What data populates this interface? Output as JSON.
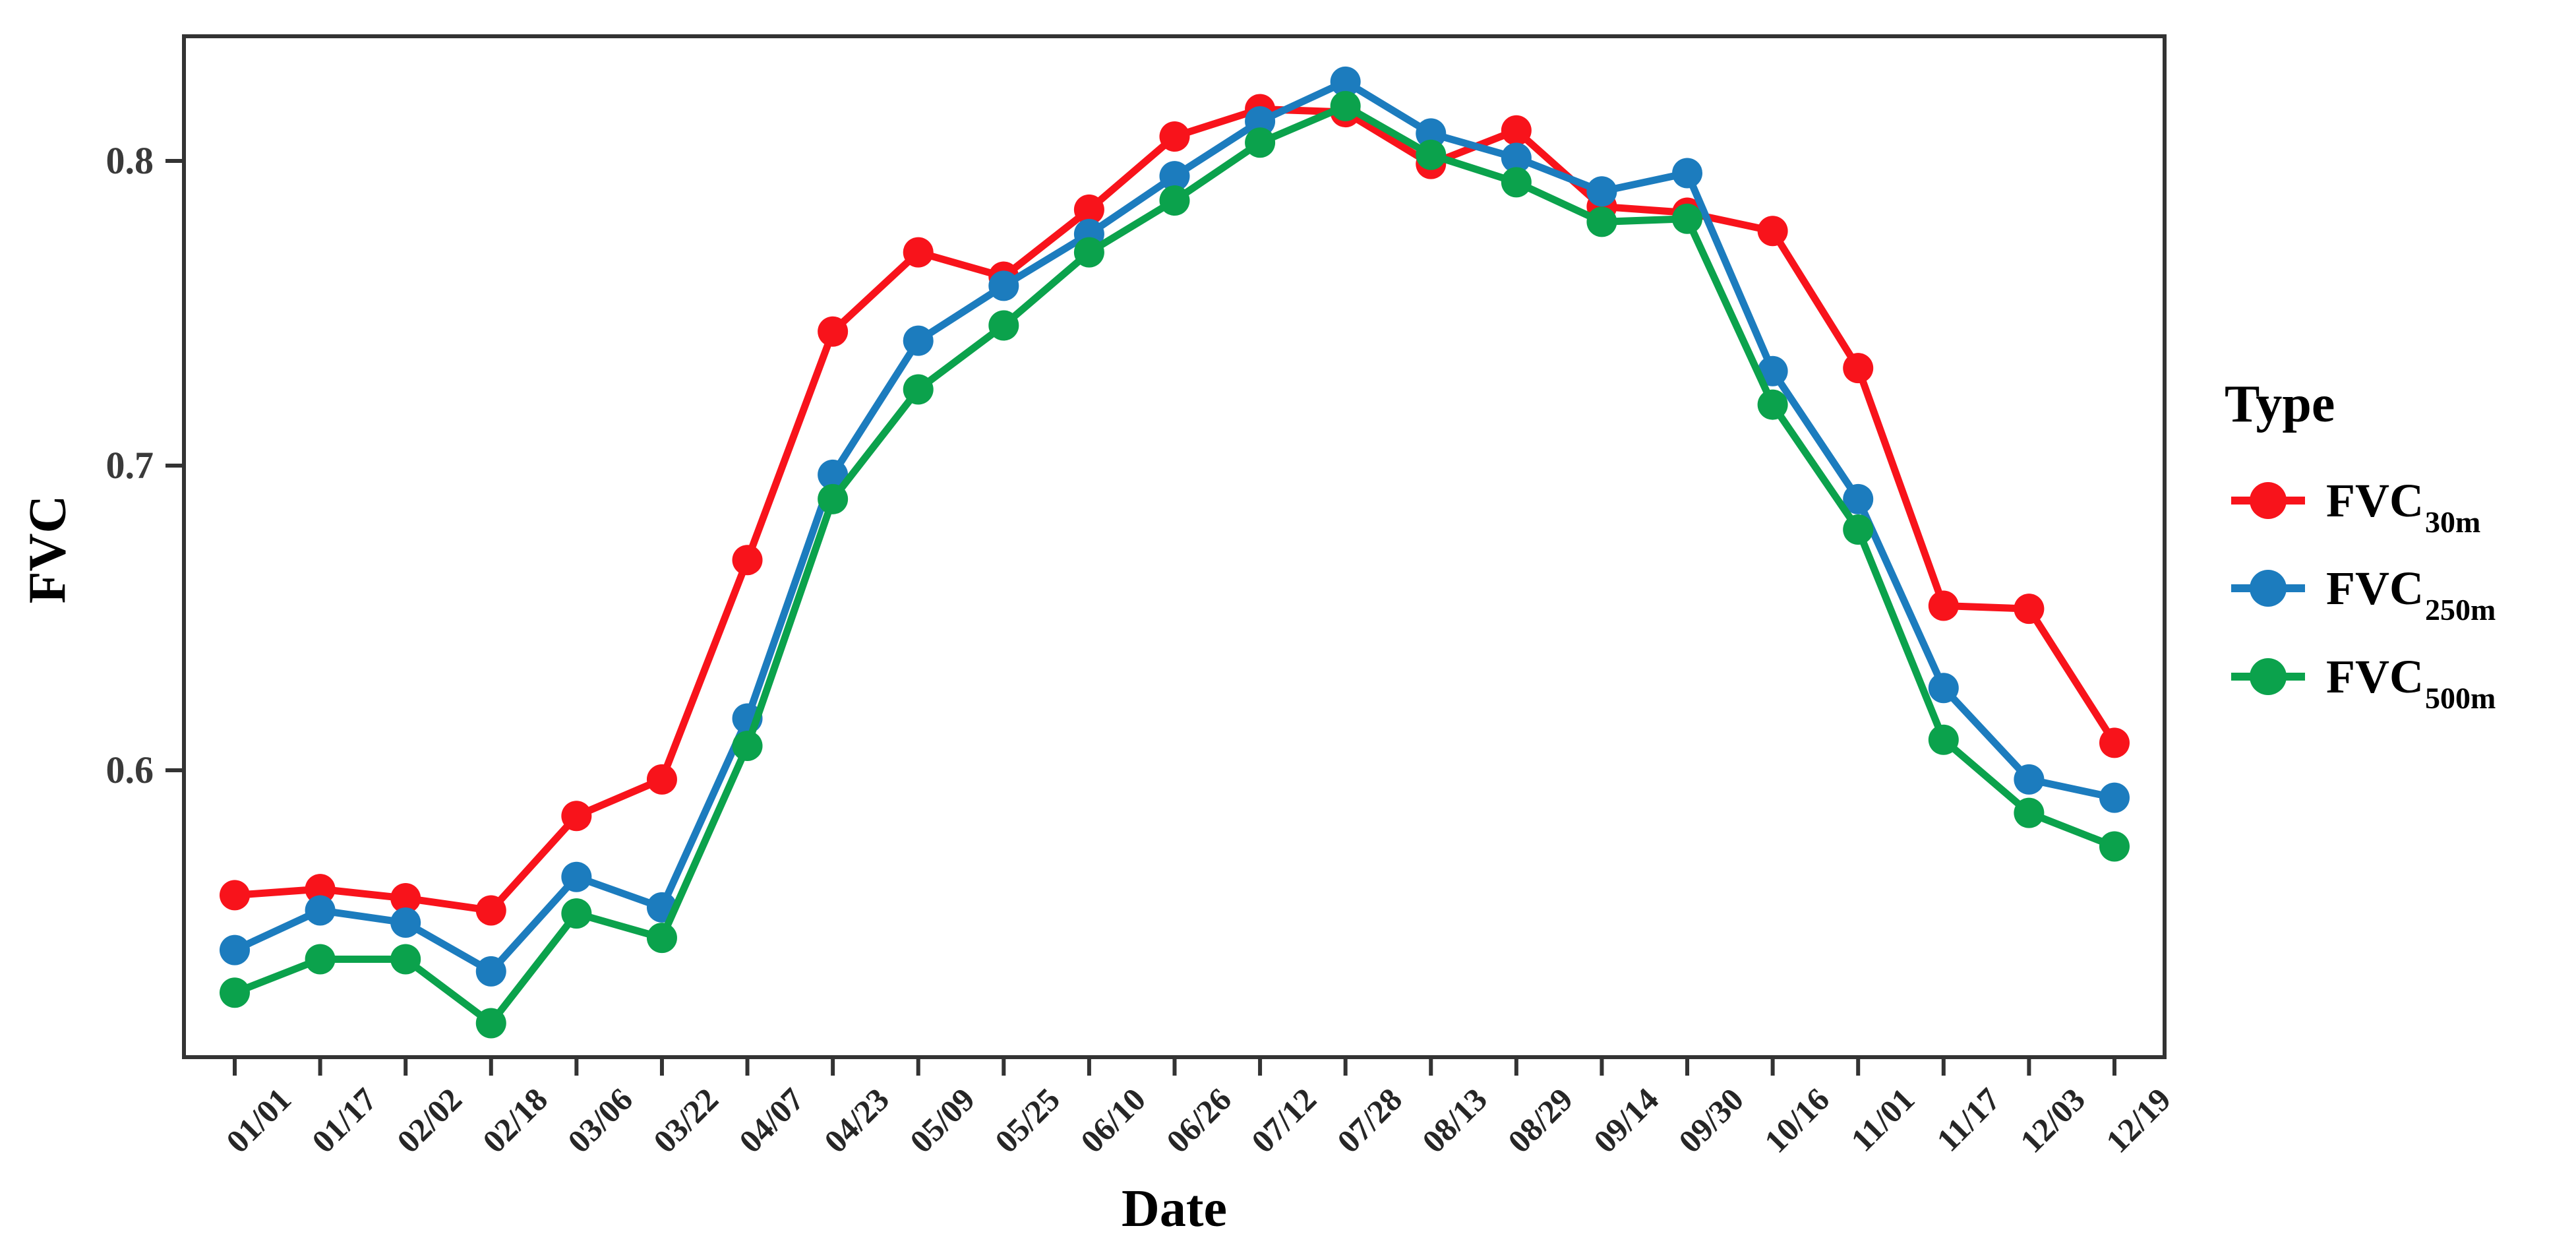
{
  "chart_data": {
    "type": "line",
    "title": "",
    "xlabel": "Date",
    "ylabel": "FVC",
    "x_categories": [
      "01/01",
      "01/17",
      "02/02",
      "02/18",
      "03/06",
      "03/22",
      "04/07",
      "04/23",
      "05/09",
      "05/25",
      "06/10",
      "06/26",
      "07/12",
      "07/28",
      "08/13",
      "08/29",
      "09/14",
      "09/30",
      "10/16",
      "11/01",
      "11/17",
      "12/03",
      "12/19"
    ],
    "y_ticks": [
      0.8,
      0.7,
      0.6
    ],
    "y_tick_labels": [
      "0.8",
      "0.7",
      "0.6"
    ],
    "ylim": [
      0.506,
      0.841
    ],
    "grid": "off",
    "legend": {
      "title": "Type",
      "position": "right"
    },
    "series": [
      {
        "name": "FVC",
        "subscript": "30m",
        "color": "#f8131b",
        "values": [
          0.559,
          0.561,
          0.558,
          0.554,
          0.585,
          0.597,
          0.669,
          0.744,
          0.77,
          0.762,
          0.784,
          0.808,
          0.817,
          0.816,
          0.799,
          0.81,
          0.785,
          0.783,
          0.777,
          0.732,
          0.654,
          0.653,
          0.609
        ]
      },
      {
        "name": "FVC",
        "subscript": "250m",
        "color": "#1c7cbe",
        "values": [
          0.541,
          0.554,
          0.55,
          0.534,
          0.565,
          0.555,
          0.617,
          0.697,
          0.741,
          0.759,
          0.776,
          0.795,
          0.813,
          0.826,
          0.809,
          0.801,
          0.79,
          0.796,
          0.731,
          0.689,
          0.627,
          0.597,
          0.591
        ]
      },
      {
        "name": "FVC",
        "subscript": "500m",
        "color": "#0ba24c",
        "values": [
          0.527,
          0.538,
          0.538,
          0.517,
          0.553,
          0.545,
          0.608,
          0.689,
          0.725,
          0.746,
          0.77,
          0.787,
          0.806,
          0.818,
          0.802,
          0.793,
          0.78,
          0.781,
          0.72,
          0.679,
          0.61,
          0.586,
          0.575
        ]
      }
    ],
    "axis_color": "#333333"
  }
}
